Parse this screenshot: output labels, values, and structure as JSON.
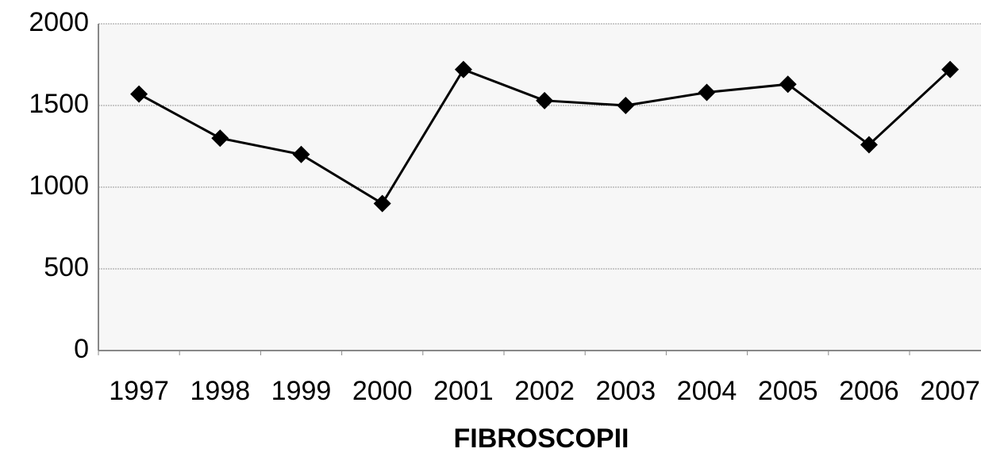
{
  "chart_data": {
    "type": "line",
    "x_label": "FIBROSCOPII",
    "categories": [
      "1997",
      "1998",
      "1999",
      "2000",
      "2001",
      "2002",
      "2003",
      "2004",
      "2005",
      "2006",
      "2007"
    ],
    "values": [
      1570,
      1300,
      1200,
      900,
      1720,
      1530,
      1500,
      1580,
      1630,
      1260,
      1720
    ],
    "color": "#000000",
    "ylim": [
      0,
      2000
    ],
    "yticks": [
      0,
      500,
      1000,
      1500,
      2000
    ],
    "grid": true
  }
}
